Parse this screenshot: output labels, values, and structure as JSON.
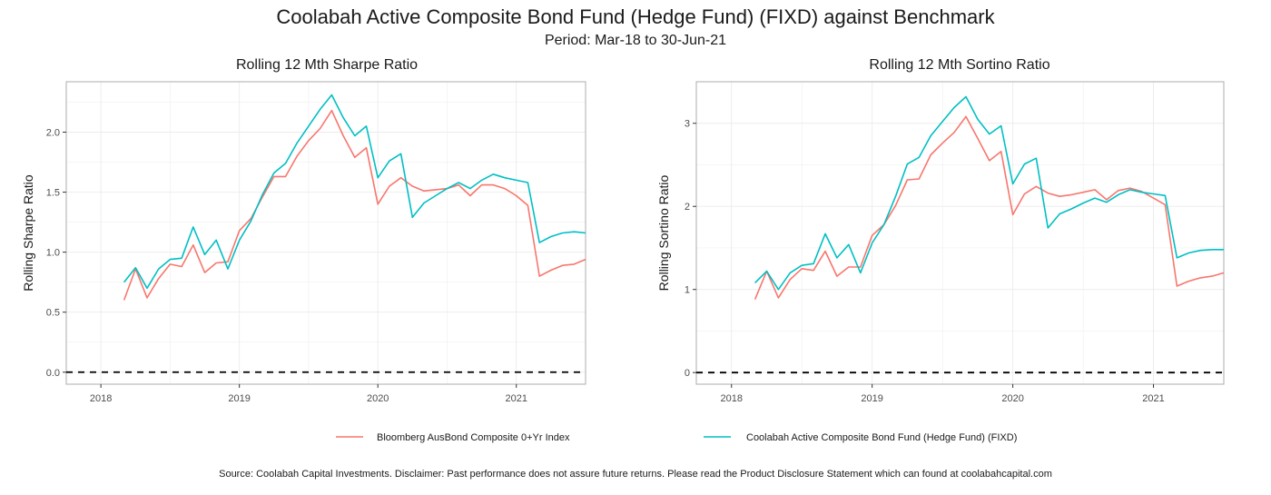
{
  "title": "Coolabah Active Composite Bond Fund (Hedge Fund) (FIXD) against Benchmark",
  "subtitle": "Period: Mar-18 to 30-Jun-21",
  "footer": "Source: Coolabah Capital Investments. Disclaimer: Past performance does not assure future returns. Please read the Product Disclosure Statement which can found at coolabahcapital.com",
  "colors": {
    "benchmark": "#f8766d",
    "fund": "#00bfc4",
    "baseline": "#000000",
    "panel_border": "#b3b3b3",
    "grid": "#ebebeb"
  },
  "legend": {
    "position": "bottom",
    "items": [
      "Bloomberg AusBond Composite 0+Yr Index",
      "Coolabah Active Composite Bond Fund (Hedge Fund) (FIXD)"
    ]
  },
  "chart_data": [
    {
      "type": "line",
      "title": "Rolling 12 Mth Sharpe Ratio",
      "xlabel": "",
      "ylabel": "Rolling Sharpe Ratio",
      "xlim": [
        "2017-10",
        "2021-07"
      ],
      "ylim": [
        -0.1,
        2.42
      ],
      "xticks": [
        "2018",
        "2019",
        "2020",
        "2021"
      ],
      "yticks": [
        "0.0",
        "0.5",
        "1.0",
        "1.5",
        "2.0"
      ],
      "grid": true,
      "x": [
        "2018-03",
        "2018-04",
        "2018-05",
        "2018-06",
        "2018-07",
        "2018-08",
        "2018-09",
        "2018-10",
        "2018-11",
        "2018-12",
        "2019-01",
        "2019-02",
        "2019-03",
        "2019-04",
        "2019-05",
        "2019-06",
        "2019-07",
        "2019-08",
        "2019-09",
        "2019-10",
        "2019-11",
        "2019-12",
        "2020-01",
        "2020-02",
        "2020-03",
        "2020-04",
        "2020-05",
        "2020-06",
        "2020-07",
        "2020-08",
        "2020-09",
        "2020-10",
        "2020-11",
        "2020-12",
        "2021-01",
        "2021-02",
        "2021-03",
        "2021-04",
        "2021-05",
        "2021-06",
        "2021-07"
      ],
      "series": [
        {
          "name": "Bloomberg AusBond Composite 0+Yr Index",
          "values": [
            0.6,
            0.86,
            0.62,
            0.78,
            0.9,
            0.88,
            1.06,
            0.83,
            0.91,
            0.92,
            1.18,
            1.28,
            1.46,
            1.63,
            1.63,
            1.8,
            1.93,
            2.03,
            2.18,
            1.97,
            1.79,
            1.87,
            1.4,
            1.55,
            1.62,
            1.55,
            1.51,
            1.52,
            1.53,
            1.56,
            1.47,
            1.56,
            1.56,
            1.53,
            1.47,
            1.39,
            0.8,
            0.85,
            0.89,
            0.9,
            0.94
          ]
        },
        {
          "name": "Coolabah Active Composite Bond Fund (Hedge Fund) (FIXD)",
          "values": [
            0.75,
            0.87,
            0.7,
            0.86,
            0.94,
            0.95,
            1.21,
            0.98,
            1.1,
            0.86,
            1.1,
            1.26,
            1.48,
            1.66,
            1.74,
            1.91,
            2.05,
            2.19,
            2.31,
            2.12,
            1.97,
            2.05,
            1.62,
            1.76,
            1.82,
            1.29,
            1.41,
            1.47,
            1.53,
            1.58,
            1.53,
            1.6,
            1.65,
            1.62,
            1.6,
            1.58,
            1.08,
            1.13,
            1.16,
            1.17,
            1.16
          ]
        }
      ],
      "baseline": {
        "value": 0,
        "from": "2017-10",
        "to": "2021-07",
        "style": "dashed"
      }
    },
    {
      "type": "line",
      "title": "Rolling 12 Mth Sortino Ratio",
      "xlabel": "",
      "ylabel": "Rolling Sortino Ratio",
      "xlim": [
        "2017-10",
        "2021-07"
      ],
      "ylim": [
        -0.14,
        3.5
      ],
      "xticks": [
        "2018",
        "2019",
        "2020",
        "2021"
      ],
      "yticks": [
        "0",
        "1",
        "2",
        "3"
      ],
      "grid": true,
      "x": [
        "2018-03",
        "2018-04",
        "2018-05",
        "2018-06",
        "2018-07",
        "2018-08",
        "2018-09",
        "2018-10",
        "2018-11",
        "2018-12",
        "2019-01",
        "2019-02",
        "2019-03",
        "2019-04",
        "2019-05",
        "2019-06",
        "2019-07",
        "2019-08",
        "2019-09",
        "2019-10",
        "2019-11",
        "2019-12",
        "2020-01",
        "2020-02",
        "2020-03",
        "2020-04",
        "2020-05",
        "2020-06",
        "2020-07",
        "2020-08",
        "2020-09",
        "2020-10",
        "2020-11",
        "2020-12",
        "2021-01",
        "2021-02",
        "2021-03",
        "2021-04",
        "2021-05",
        "2021-06",
        "2021-07"
      ],
      "series": [
        {
          "name": "Bloomberg AusBond Composite 0+Yr Index",
          "values": [
            0.88,
            1.22,
            0.9,
            1.12,
            1.25,
            1.23,
            1.46,
            1.16,
            1.27,
            1.27,
            1.65,
            1.78,
            2.01,
            2.32,
            2.33,
            2.62,
            2.76,
            2.89,
            3.08,
            2.82,
            2.55,
            2.66,
            1.9,
            2.15,
            2.24,
            2.16,
            2.12,
            2.14,
            2.17,
            2.2,
            2.08,
            2.19,
            2.22,
            2.18,
            2.1,
            2.02,
            1.04,
            1.1,
            1.14,
            1.16,
            1.2
          ]
        },
        {
          "name": "Coolabah Active Composite Bond Fund (Hedge Fund) (FIXD)",
          "values": [
            1.08,
            1.22,
            1.0,
            1.2,
            1.29,
            1.31,
            1.67,
            1.38,
            1.54,
            1.2,
            1.56,
            1.78,
            2.12,
            2.51,
            2.59,
            2.85,
            3.02,
            3.19,
            3.32,
            3.05,
            2.87,
            2.97,
            2.27,
            2.51,
            2.58,
            1.74,
            1.91,
            1.97,
            2.04,
            2.1,
            2.05,
            2.14,
            2.2,
            2.17,
            2.15,
            2.13,
            1.38,
            1.44,
            1.47,
            1.48,
            1.48
          ]
        }
      ],
      "baseline": {
        "value": 0,
        "from": "2017-10",
        "to": "2021-07",
        "style": "dashed"
      }
    }
  ]
}
